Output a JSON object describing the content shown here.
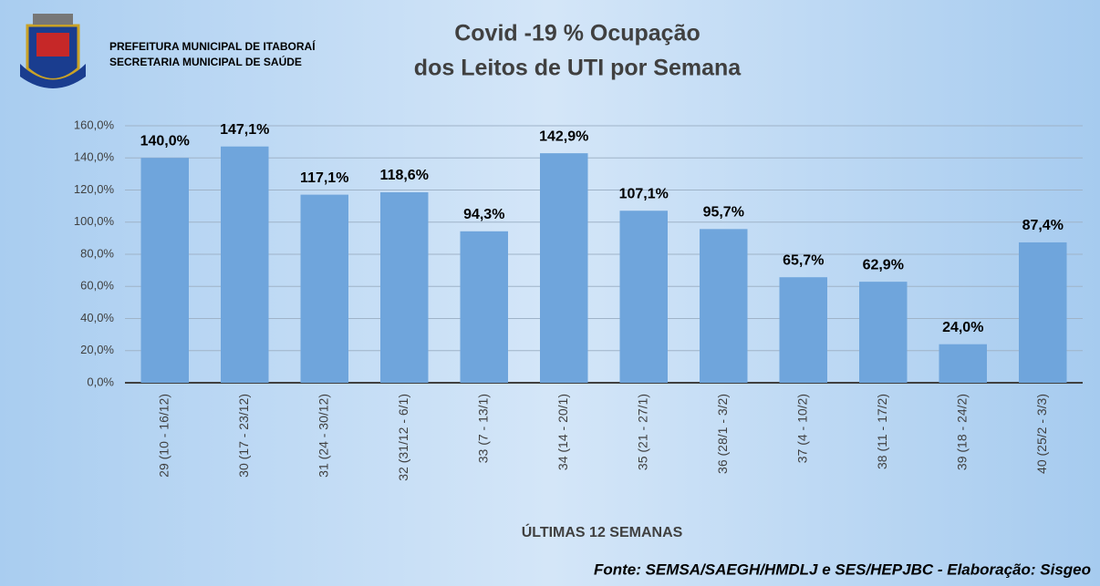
{
  "chart_data": {
    "type": "bar",
    "header": [
      "PREFEITURA MUNICIPAL DE ITABORAÍ",
      "SECRETARIA MUNICIPAL DE SAÚDE"
    ],
    "title": [
      "Covid -19 % Ocupação",
      "dos Leitos de UTI por Semana"
    ],
    "x_label": "ÚLTIMAS 12 SEMANAS",
    "source": "Fonte: SEMSA/SAEGH/HMDLJ e SES/HEPJBC - Elaboração: Sisgeo",
    "categories": [
      "29 (10 - 16/12)",
      "30 (17 - 23/12)",
      "31 (24 - 30/12)",
      "32 (31/12 - 6/1)",
      "33 (7 - 13/1)",
      "34 (14 - 20/1)",
      "35 (21 - 27/1)",
      "36 (28/1 - 3/2)",
      "37 (4 - 10/2)",
      "38 (11 - 17/2)",
      "39 (18 - 24/2)",
      "40 (25/2 - 3/3)"
    ],
    "values": [
      140.0,
      147.1,
      117.1,
      118.6,
      94.3,
      142.9,
      107.1,
      95.7,
      65.7,
      62.9,
      24.0,
      87.4
    ],
    "value_labels": [
      "140,0%",
      "147,1%",
      "117,1%",
      "118,6%",
      "94,3%",
      "142,9%",
      "107,1%",
      "95,7%",
      "65,7%",
      "62,9%",
      "24,0%",
      "87,4%"
    ],
    "color": "#6fa5dc",
    "ylim": [
      0,
      160
    ],
    "yticks": [
      {
        "value": 0,
        "label": "0,0%"
      },
      {
        "value": 20,
        "label": "20,0%"
      },
      {
        "value": 40,
        "label": "40,0%"
      },
      {
        "value": 60,
        "label": "60,0%"
      },
      {
        "value": 80,
        "label": "80,0%"
      },
      {
        "value": 100,
        "label": "100,0%"
      },
      {
        "value": 120,
        "label": "120,0%"
      },
      {
        "value": 140,
        "label": "140,0%"
      },
      {
        "value": 160,
        "label": "160,0%"
      }
    ],
    "grid": true
  }
}
